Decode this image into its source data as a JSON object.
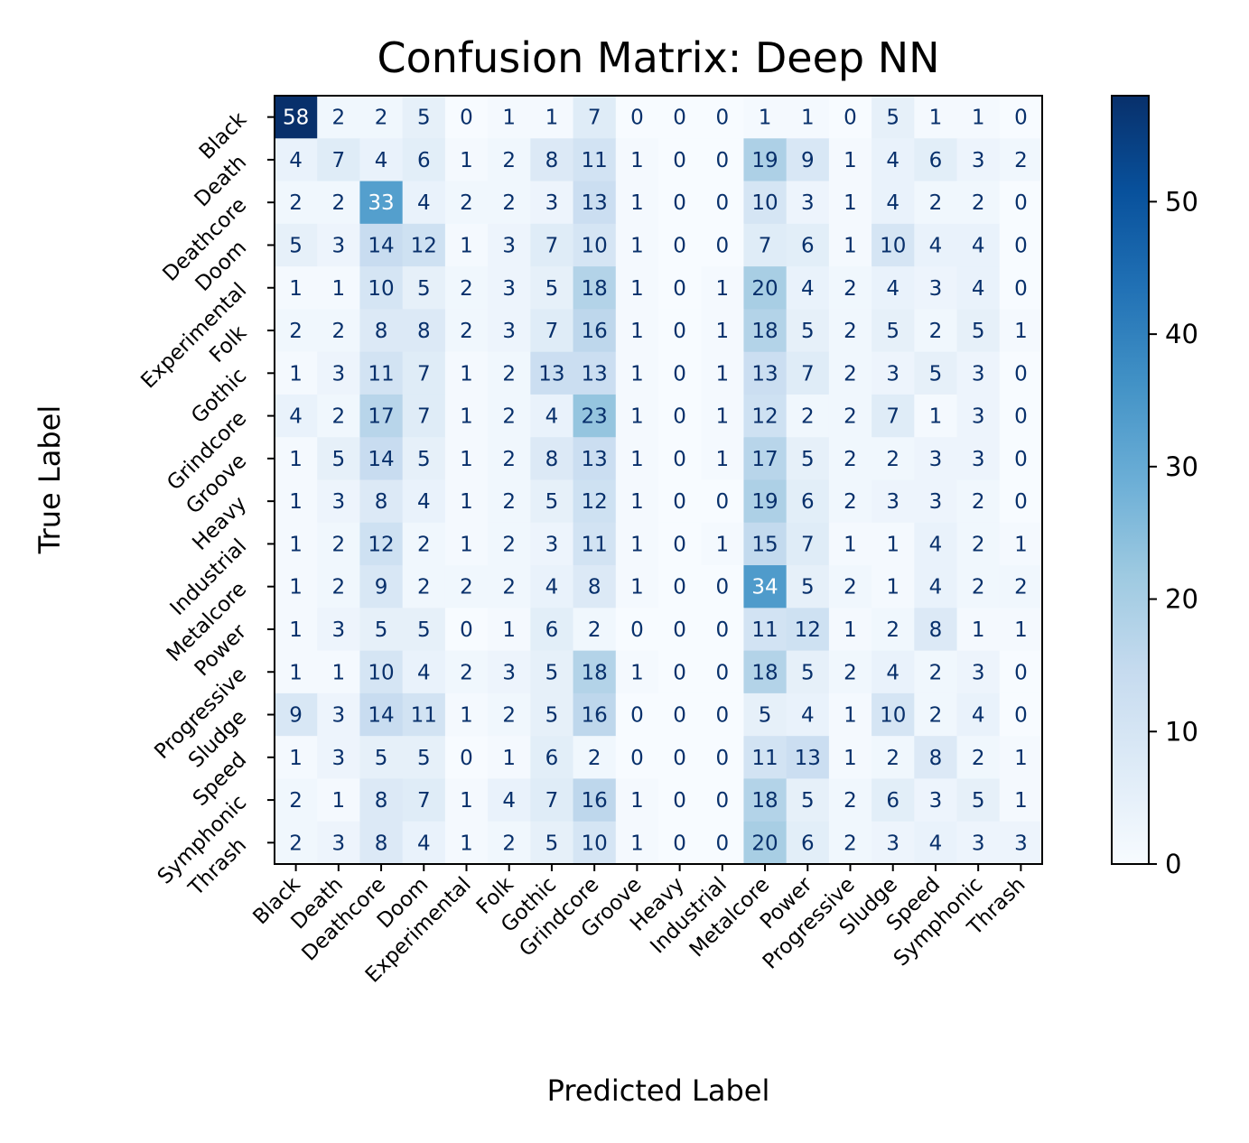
{
  "chart_data": {
    "type": "heatmap",
    "title": "Confusion Matrix: Deep NN",
    "xlabel": "Predicted Label",
    "ylabel": "True Label",
    "labels": [
      "Black",
      "Death",
      "Deathcore",
      "Doom",
      "Experimental",
      "Folk",
      "Gothic",
      "Grindcore",
      "Groove",
      "Heavy",
      "Industrial",
      "Metalcore",
      "Power",
      "Progressive",
      "Sludge",
      "Speed",
      "Symphonic",
      "Thrash"
    ],
    "matrix": [
      [
        58,
        2,
        2,
        5,
        0,
        1,
        1,
        7,
        0,
        0,
        0,
        1,
        1,
        0,
        5,
        1,
        1,
        0
      ],
      [
        4,
        7,
        4,
        6,
        1,
        2,
        8,
        11,
        1,
        0,
        0,
        19,
        9,
        1,
        4,
        6,
        3,
        2
      ],
      [
        2,
        2,
        33,
        4,
        2,
        2,
        3,
        13,
        1,
        0,
        0,
        10,
        3,
        1,
        4,
        2,
        2,
        0
      ],
      [
        5,
        3,
        14,
        12,
        1,
        3,
        7,
        10,
        1,
        0,
        0,
        7,
        6,
        1,
        10,
        4,
        4,
        0
      ],
      [
        1,
        1,
        10,
        5,
        2,
        3,
        5,
        18,
        1,
        0,
        1,
        20,
        4,
        2,
        4,
        3,
        4,
        0
      ],
      [
        2,
        2,
        8,
        8,
        2,
        3,
        7,
        16,
        1,
        0,
        1,
        18,
        5,
        2,
        5,
        2,
        5,
        1
      ],
      [
        1,
        3,
        11,
        7,
        1,
        2,
        13,
        13,
        1,
        0,
        1,
        13,
        7,
        2,
        3,
        5,
        3,
        0
      ],
      [
        4,
        2,
        17,
        7,
        1,
        2,
        4,
        23,
        1,
        0,
        1,
        12,
        2,
        2,
        7,
        1,
        3,
        0
      ],
      [
        1,
        5,
        14,
        5,
        1,
        2,
        8,
        13,
        1,
        0,
        1,
        17,
        5,
        2,
        2,
        3,
        3,
        0
      ],
      [
        1,
        3,
        8,
        4,
        1,
        2,
        5,
        12,
        1,
        0,
        0,
        19,
        6,
        2,
        3,
        3,
        2,
        0
      ],
      [
        1,
        2,
        12,
        2,
        1,
        2,
        3,
        11,
        1,
        0,
        1,
        15,
        7,
        1,
        1,
        4,
        2,
        1
      ],
      [
        1,
        2,
        9,
        2,
        2,
        2,
        4,
        8,
        1,
        0,
        0,
        34,
        5,
        2,
        1,
        4,
        2,
        2
      ],
      [
        1,
        3,
        5,
        5,
        0,
        1,
        6,
        2,
        0,
        0,
        0,
        11,
        12,
        1,
        2,
        8,
        1,
        1
      ],
      [
        1,
        1,
        10,
        4,
        2,
        3,
        5,
        18,
        1,
        0,
        0,
        18,
        5,
        2,
        4,
        2,
        3,
        0
      ],
      [
        9,
        3,
        14,
        11,
        1,
        2,
        5,
        16,
        0,
        0,
        0,
        5,
        4,
        1,
        10,
        2,
        4,
        0
      ],
      [
        1,
        3,
        5,
        5,
        0,
        1,
        6,
        2,
        0,
        0,
        0,
        11,
        13,
        1,
        2,
        8,
        2,
        1
      ],
      [
        2,
        1,
        8,
        7,
        1,
        4,
        7,
        16,
        1,
        0,
        0,
        18,
        5,
        2,
        6,
        3,
        5,
        1
      ],
      [
        2,
        3,
        8,
        4,
        1,
        2,
        5,
        10,
        1,
        0,
        0,
        20,
        6,
        2,
        3,
        4,
        3,
        3
      ]
    ],
    "colorbar": {
      "ticks": [
        0,
        10,
        20,
        30,
        40,
        50
      ],
      "vmin": 0,
      "vmax": 58,
      "colormap": "Blues"
    },
    "colors": {
      "low": "#f7fbff",
      "high": "#08306b",
      "text_dark": "#08306b",
      "text_light": "#ffffff"
    }
  }
}
